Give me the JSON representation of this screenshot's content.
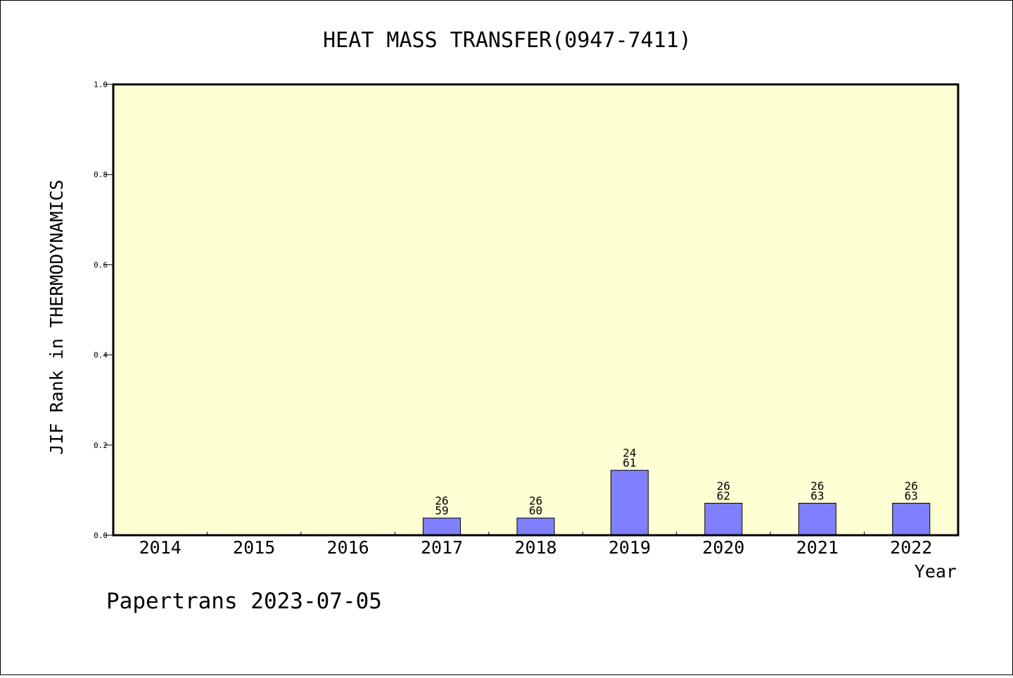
{
  "chart_data": {
    "type": "bar",
    "title": "HEAT MASS TRANSFER(0947-7411)",
    "xlabel": "Year",
    "ylabel": "JIF Rank in THERMODYNAMICS",
    "ylim": [
      0,
      1.0
    ],
    "yticks": [
      "0.0",
      "0.2",
      "0.4",
      "0.6",
      "0.8",
      "1.0"
    ],
    "categories": [
      "2014",
      "2015",
      "2016",
      "2017",
      "2018",
      "2019",
      "2020",
      "2021",
      "2022"
    ],
    "values": [
      null,
      null,
      null,
      0.038,
      0.038,
      0.144,
      0.071,
      0.071,
      0.071
    ],
    "rank_labels": [
      [
        "",
        ""
      ],
      [
        "",
        ""
      ],
      [
        "",
        ""
      ],
      [
        "26",
        "59"
      ],
      [
        "26",
        "60"
      ],
      [
        "24",
        "61"
      ],
      [
        "26",
        "62"
      ],
      [
        "26",
        "63"
      ],
      [
        "26",
        "63"
      ]
    ],
    "grid": false,
    "colors": {
      "plot_background": "#ffffd4",
      "bar_fill": "#8080ff",
      "bar_stroke": "#000000"
    }
  },
  "footer": {
    "credit": "Papertrans 2023-07-05"
  }
}
